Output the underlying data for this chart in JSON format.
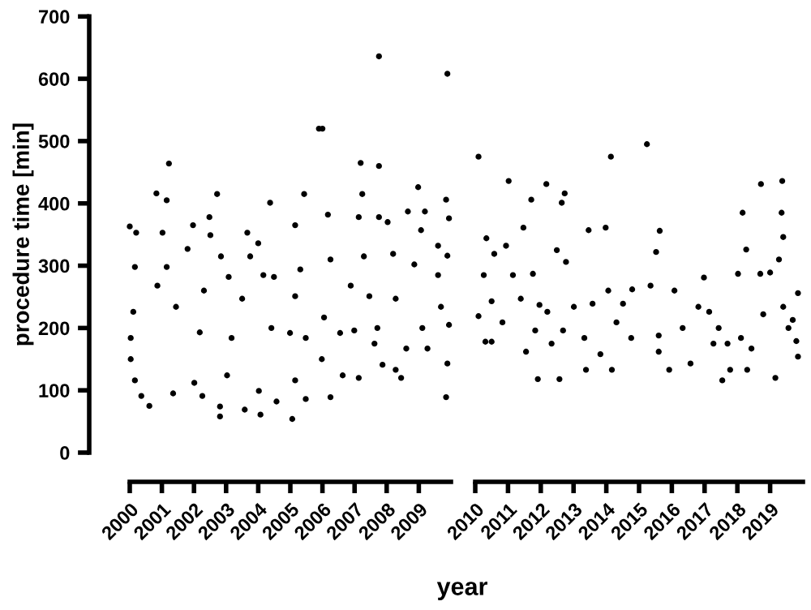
{
  "chart_data": [
    {
      "type": "scatter",
      "ylabel": "procedure time [min]",
      "xlabel": "year",
      "color": "#000000",
      "marker": "circle",
      "grid": false,
      "legend": false,
      "x": [
        2000.0,
        2000.2,
        2000.16,
        2000.11,
        2000.03,
        2000.03,
        2000.16,
        2000.83,
        2001.22,
        2001.15,
        2001.02,
        2001.15,
        2000.86,
        2000.61,
        2000.36,
        2001.44,
        2001.35,
        2001.8,
        2001.97,
        2002.01,
        2002.26,
        2002.72,
        2002.48,
        2002.51,
        2002.31,
        2002.18,
        2002.81,
        2002.81,
        2002.84,
        2003.08,
        2003.17,
        2003.03,
        2003.58,
        2003.66,
        2003.75,
        2003.5,
        2004.0,
        2004.16,
        2004.07,
        2004.02,
        2004.37,
        2004.41,
        2004.49,
        2004.57,
        2004.99,
        2005.06,
        2005.15,
        2005.15,
        2005.15,
        2005.43,
        2005.31,
        2005.48,
        2005.48,
        2005.89,
        2006.0,
        2006.17,
        2006.25,
        2006.05,
        2005.98,
        2006.25,
        2006.55,
        2006.63,
        2006.88,
        2007.13,
        2007.19,
        2007.24,
        2007.13,
        2006.99,
        2007.29,
        2007.46,
        2007.76,
        2007.76,
        2007.76,
        2007.71,
        2007.62,
        2007.87,
        2008.03,
        2008.2,
        2008.28,
        2008.28,
        2008.45,
        2008.66,
        2008.61,
        2008.86,
        2008.98,
        2009.19,
        2009.07,
        2009.11,
        2009.27,
        2009.6,
        2009.6,
        2009.69,
        2009.89,
        2009.85,
        2009.94,
        2009.89,
        2009.94,
        2009.89,
        2009.85
      ],
      "values": [
        363,
        353,
        298,
        226,
        184,
        150,
        116,
        416,
        464,
        405,
        353,
        298,
        268,
        75,
        91,
        234,
        95,
        327,
        365,
        112,
        91,
        415,
        378,
        349,
        260,
        193,
        58,
        74,
        315,
        282,
        184,
        124,
        69,
        353,
        315,
        247,
        336,
        285,
        61,
        99,
        401,
        200,
        282,
        82,
        192,
        54,
        365,
        251,
        116,
        415,
        294,
        184,
        86,
        520,
        520,
        382,
        310,
        217,
        150,
        89,
        192,
        124,
        268,
        378,
        465,
        415,
        120,
        196,
        315,
        251,
        636,
        460,
        378,
        200,
        175,
        141,
        370,
        319,
        247,
        133,
        120,
        387,
        167,
        302,
        426,
        387,
        357,
        200,
        167,
        332,
        285,
        234,
        608,
        406,
        376,
        316,
        205,
        143,
        89
      ],
      "xlim": [
        2000,
        2010
      ],
      "xticks": [
        2000,
        2001,
        2002,
        2003,
        2004,
        2005,
        2006,
        2007,
        2008,
        2009
      ],
      "ylim": [
        0,
        700
      ],
      "yticks": [
        0,
        100,
        200,
        300,
        400,
        500,
        600,
        700
      ]
    },
    {
      "type": "scatter",
      "color": "#000000",
      "marker": "circle",
      "grid": false,
      "legend": false,
      "tick_labels": "x",
      "x": [
        2010.1,
        2010.1,
        2010.26,
        2010.34,
        2010.31,
        2010.5,
        2010.58,
        2010.5,
        2010.83,
        2010.94,
        2011.02,
        2011.15,
        2011.39,
        2011.47,
        2011.55,
        2011.71,
        2011.76,
        2011.83,
        2011.91,
        2011.96,
        2012.17,
        2012.2,
        2012.33,
        2012.49,
        2012.57,
        2012.64,
        2012.73,
        2012.77,
        2012.68,
        2013.01,
        2013.33,
        2013.38,
        2013.46,
        2013.58,
        2013.82,
        2013.98,
        2014.14,
        2014.06,
        2014.17,
        2014.31,
        2014.51,
        2014.79,
        2014.76,
        2015.24,
        2015.35,
        2015.52,
        2015.63,
        2015.6,
        2015.6,
        2015.92,
        2016.08,
        2016.33,
        2016.57,
        2016.81,
        2016.98,
        2017.14,
        2017.27,
        2017.43,
        2017.54,
        2017.7,
        2017.78,
        2018.02,
        2018.16,
        2018.11,
        2018.27,
        2018.3,
        2018.43,
        2018.72,
        2018.7,
        2018.79,
        2019.0,
        2019.16,
        2019.37,
        2019.35,
        2019.4,
        2019.27,
        2019.4,
        2019.56,
        2019.69,
        2019.8,
        2019.85,
        2019.85
      ],
      "values": [
        475,
        219,
        285,
        344,
        178,
        178,
        319,
        243,
        209,
        332,
        436,
        285,
        247,
        361,
        162,
        406,
        287,
        196,
        118,
        237,
        431,
        226,
        175,
        325,
        118,
        401,
        416,
        306,
        196,
        234,
        184,
        133,
        357,
        239,
        158,
        361,
        475,
        260,
        133,
        209,
        239,
        262,
        184,
        495,
        268,
        322,
        356,
        188,
        162,
        133,
        260,
        200,
        143,
        234,
        281,
        226,
        175,
        200,
        116,
        175,
        133,
        287,
        385,
        184,
        326,
        133,
        167,
        431,
        287,
        222,
        289,
        120,
        436,
        385,
        346,
        310,
        234,
        200,
        213,
        179,
        154,
        256
      ],
      "xlim": [
        2010,
        2020
      ],
      "xticks": [
        2010,
        2011,
        2012,
        2013,
        2014,
        2015,
        2016,
        2017,
        2018,
        2019
      ],
      "ylim": [
        0,
        700
      ],
      "yticks": [
        0,
        100,
        200,
        300,
        400,
        500,
        600,
        700
      ]
    }
  ]
}
